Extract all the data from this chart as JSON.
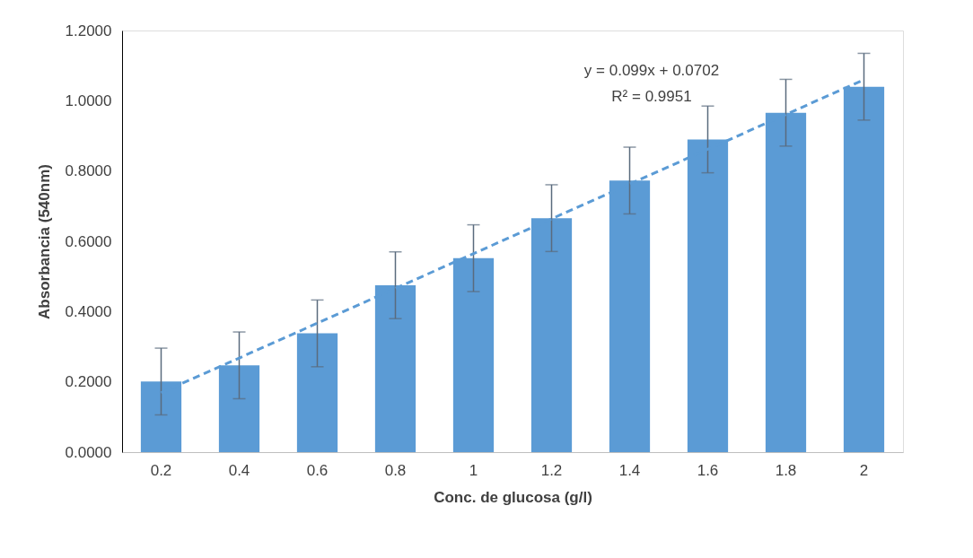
{
  "chart_data": {
    "type": "bar",
    "xlabel": "Conc. de glucosa (g/l)",
    "ylabel": "Absorbancia (540nm)",
    "categories": [
      "0.2",
      "0.4",
      "0.6",
      "0.8",
      "1",
      "1.2",
      "1.4",
      "1.6",
      "1.8",
      "2"
    ],
    "series": [
      {
        "color": "#5b9bd5",
        "values": [
          0.201,
          0.247,
          0.338,
          0.475,
          0.552,
          0.666,
          0.773,
          0.89,
          0.966,
          1.04
        ],
        "errors": [
          0.095,
          0.095,
          0.095,
          0.095,
          0.095,
          0.095,
          0.095,
          0.095,
          0.095,
          0.095
        ]
      },
      {
        "type": "line",
        "color": "#5b9bd5",
        "line_style": "dashed",
        "x": [
          "0.2",
          "2"
        ],
        "values": [
          0.169,
          1.06
        ]
      }
    ],
    "ylim": [
      0,
      1.2
    ],
    "yticks": [
      {
        "value": 0,
        "label": "0.0000"
      },
      {
        "value": 0.2,
        "label": "0.2000"
      },
      {
        "value": 0.4,
        "label": "0.4000"
      },
      {
        "value": 0.6,
        "label": "0.6000"
      },
      {
        "value": 0.8,
        "label": "0.8000"
      },
      {
        "value": 1.0,
        "label": "1.0000"
      },
      {
        "value": 1.2,
        "label": "1.2000"
      }
    ],
    "annotations": [
      "y = 0.099x + 0.0702",
      "R² = 0.9951"
    ],
    "grid": false,
    "legend": false
  }
}
